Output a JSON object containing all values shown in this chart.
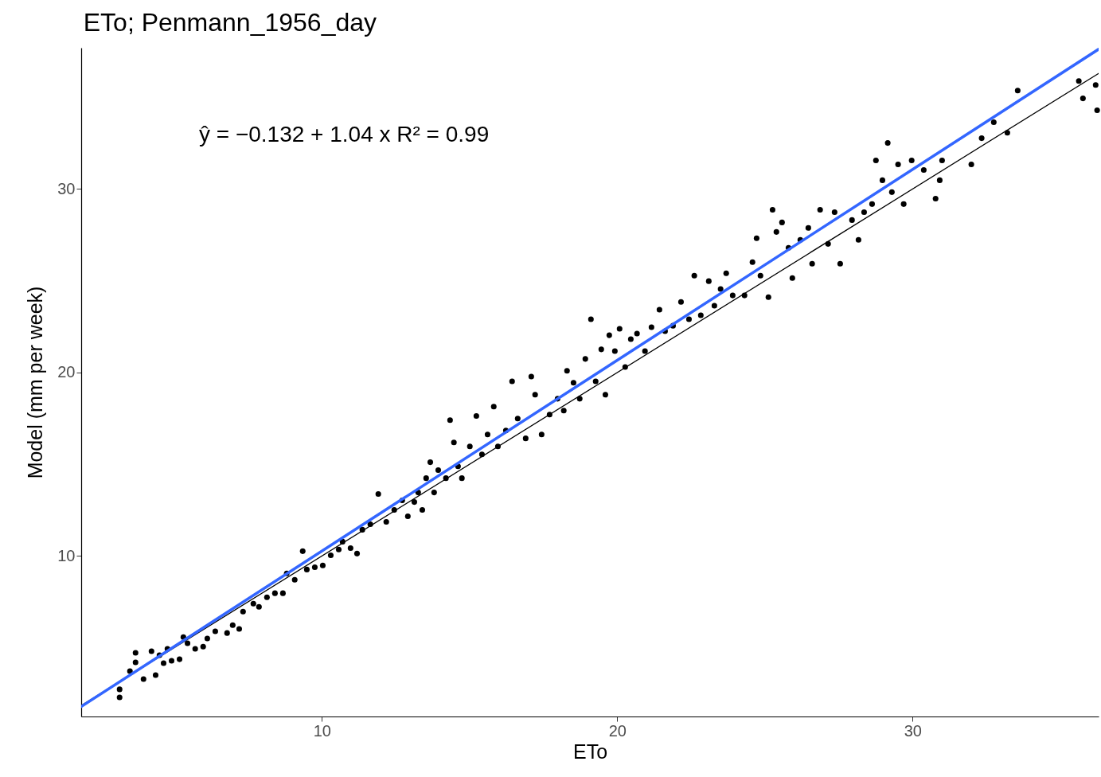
{
  "chart_data": {
    "type": "scatter",
    "title": "ETo; Penmann_1956_day",
    "xlabel": "ETo",
    "ylabel": "Model (mm per week)",
    "annotations": [
      "ŷ = −0.132 + 1.04 x   R² = 0.99"
    ],
    "xlim": [
      1.85,
      36.3
    ],
    "ylim": [
      1.25,
      37.7
    ],
    "xticks": [
      10,
      20,
      30
    ],
    "yticks": [
      10,
      20,
      30
    ],
    "grid": false,
    "legend": false,
    "series": [
      {
        "marker": "circle",
        "color": "#000000",
        "x": [
          3.15,
          3.15,
          3.5,
          3.69,
          3.69,
          3.96,
          4.23,
          4.37,
          4.5,
          4.77,
          4.64,
          4.91,
          5.18,
          5.31,
          5.45,
          5.71,
          5.98,
          6.12,
          6.39,
          6.79,
          6.98,
          7.2,
          7.33,
          7.68,
          7.87,
          8.14,
          8.41,
          8.68,
          8.81,
          9.08,
          9.35,
          9.49,
          9.76,
          10.03,
          10.3,
          10.57,
          10.7,
          10.97,
          11.19,
          11.37,
          11.64,
          11.91,
          12.18,
          12.45,
          12.72,
          12.91,
          13.13,
          13.26,
          13.4,
          13.53,
          13.67,
          13.8,
          13.94,
          14.2,
          14.34,
          14.47,
          14.61,
          14.74,
          15.01,
          15.23,
          15.42,
          15.61,
          15.82,
          15.96,
          16.23,
          16.44,
          16.63,
          16.9,
          17.09,
          17.22,
          17.44,
          17.71,
          17.98,
          18.19,
          18.3,
          18.52,
          18.73,
          18.92,
          19.11,
          19.27,
          19.46,
          19.6,
          19.73,
          19.92,
          20.08,
          20.27,
          20.46,
          20.67,
          20.94,
          21.16,
          21.43,
          21.62,
          21.89,
          22.16,
          22.43,
          22.61,
          22.83,
          23.1,
          23.29,
          23.5,
          23.69,
          23.91,
          24.31,
          24.58,
          24.72,
          24.85,
          25.12,
          25.26,
          25.39,
          25.58,
          25.8,
          25.93,
          26.2,
          26.47,
          26.6,
          26.87,
          27.14,
          27.36,
          27.55,
          27.95,
          28.17,
          28.36,
          28.63,
          28.76,
          28.98,
          29.16,
          29.3,
          29.51,
          29.7,
          29.97,
          30.38,
          30.78,
          30.92,
          31,
          31.99,
          32.34,
          32.75,
          33.21,
          33.56,
          35.63,
          35.77,
          36.2,
          36.25
        ],
        "values": [
          2.29,
          2.73,
          3.72,
          4.72,
          4.2,
          3.29,
          4.81,
          3.51,
          4.59,
          4.94,
          4.16,
          4.29,
          4.37,
          5.58,
          5.24,
          4.94,
          5.06,
          5.5,
          5.89,
          5.8,
          6.23,
          6.02,
          6.97,
          7.4,
          7.23,
          7.75,
          7.97,
          7.97,
          9.05,
          8.7,
          10.26,
          9.26,
          9.39,
          9.48,
          10.04,
          10.35,
          10.78,
          10.43,
          10.13,
          11.43,
          11.73,
          13.38,
          11.86,
          12.51,
          13.03,
          12.16,
          12.94,
          13.46,
          12.51,
          14.24,
          15.11,
          13.46,
          14.68,
          14.24,
          17.4,
          16.19,
          14.89,
          14.24,
          15.97,
          17.63,
          15.54,
          16.62,
          18.14,
          15.97,
          16.84,
          19.52,
          17.49,
          16.41,
          19.78,
          18.79,
          16.62,
          17.71,
          18.57,
          17.92,
          20.09,
          19.44,
          18.57,
          20.74,
          22.9,
          19.52,
          21.26,
          18.79,
          22.03,
          21.17,
          22.38,
          20.3,
          21.82,
          22.12,
          21.17,
          22.47,
          23.42,
          22.25,
          22.55,
          23.85,
          22.9,
          25.28,
          23.12,
          24.98,
          23.64,
          24.55,
          25.41,
          24.2,
          24.2,
          26.02,
          27.32,
          25.28,
          24.11,
          28.87,
          27.66,
          28.18,
          26.8,
          25.15,
          27.23,
          27.88,
          25.93,
          28.87,
          27.01,
          28.74,
          25.93,
          28.31,
          27.23,
          28.74,
          29.18,
          31.56,
          30.48,
          32.51,
          29.83,
          31.34,
          29.18,
          31.56,
          31.04,
          29.48,
          30.48,
          31.56,
          31.34,
          32.77,
          33.64,
          33.07,
          35.37,
          35.89,
          34.94,
          35.67,
          34.29
        ]
      },
      {
        "type": "line",
        "color": "#000000",
        "x": [
          1.85,
          36.3
        ],
        "values": [
          1.85,
          36.3
        ]
      },
      {
        "type": "line",
        "color": "#3366ff",
        "x": [
          1.85,
          36.3
        ],
        "values": [
          1.79,
          37.62
        ]
      }
    ]
  }
}
